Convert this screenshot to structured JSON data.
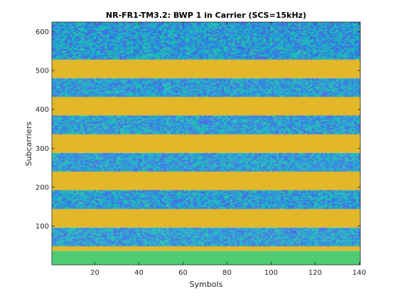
{
  "chart_data": {
    "type": "heatmap",
    "title": "NR-FR1-TM3.2: BWP 1 in Carrier (SCS=15kHz)",
    "xlabel": "Symbols",
    "ylabel": "Subcarriers",
    "xlim": [
      0.5,
      140.5
    ],
    "ylim": [
      0.5,
      624.5
    ],
    "xticks": [
      20,
      40,
      60,
      80,
      100,
      120,
      140
    ],
    "yticks": [
      100,
      200,
      300,
      400,
      500,
      600
    ],
    "grid": false,
    "colormap": "parula",
    "bands": [
      {
        "kind": "uniform",
        "from": 1,
        "to": 36,
        "color": "#4fcb74"
      },
      {
        "kind": "uniform",
        "from": 37,
        "to": 48,
        "color": "#e3b72a"
      },
      {
        "kind": "noise",
        "from": 49,
        "to": 96
      },
      {
        "kind": "uniform",
        "from": 97,
        "to": 144,
        "color": "#e3b72a"
      },
      {
        "kind": "noise",
        "from": 145,
        "to": 192
      },
      {
        "kind": "uniform",
        "from": 193,
        "to": 240,
        "color": "#e3b72a"
      },
      {
        "kind": "noise",
        "from": 241,
        "to": 288
      },
      {
        "kind": "uniform",
        "from": 289,
        "to": 336,
        "color": "#e3b72a"
      },
      {
        "kind": "noise",
        "from": 337,
        "to": 384
      },
      {
        "kind": "uniform",
        "from": 385,
        "to": 432,
        "color": "#e3b72a"
      },
      {
        "kind": "noise",
        "from": 433,
        "to": 480
      },
      {
        "kind": "uniform",
        "from": 481,
        "to": 528,
        "color": "#e3b72a"
      },
      {
        "kind": "noise",
        "from": 529,
        "to": 624
      }
    ],
    "noise_colors": [
      "#2a7fe8",
      "#4a68e2",
      "#1fa6c9",
      "#17b5be",
      "#23c0ab",
      "#2f93d7"
    ]
  }
}
